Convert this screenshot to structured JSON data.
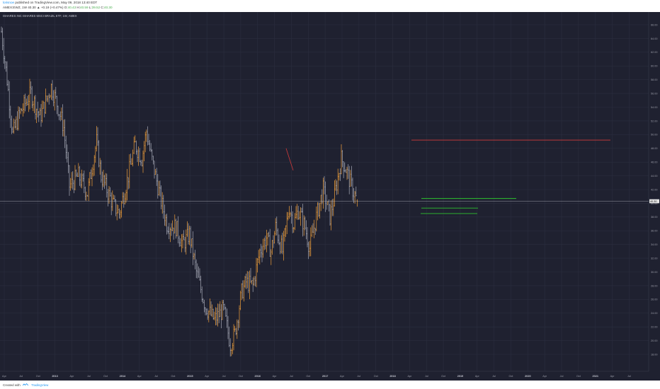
{
  "header": {
    "author": "lorisnoe",
    "published": "published on TradingView.com, May 09, 2018 13:40 EDT",
    "symbol_line": "AMEX:EWZ, 1W",
    "price_line": "40.30 ▲ +0.19 (+0.47%)",
    "o_label": "O:",
    "o_value": "40.43",
    "h_label": "H:",
    "h_value": "40.59",
    "l_label": "L:",
    "l_value": "39.52",
    "c_label": "C:",
    "c_value": "40.30"
  },
  "title": "ISHARES INC ISHARES MSCI BRAZIL ETF, 1W, AMEX",
  "footer": {
    "created_with": "Created with",
    "brand": "TradingView"
  },
  "colors": {
    "panel_bg": "#1f2130",
    "grid": "#2b2e3f",
    "bar_up": "#f2a03a",
    "bar_down": "#a7aab7",
    "axis_text": "#9a9ca8",
    "red_line": "#d23a3a",
    "green_line": "#2ec22e",
    "price_label_bg": "#e6e6e6"
  },
  "chart_data": {
    "type": "ohlc_bar",
    "interval": "1W",
    "title": "ISHARES INC ISHARES MSCI BRAZIL ETF, 1W, AMEX",
    "ylim": [
      18,
      67
    ],
    "y_ticks": [
      "66.00",
      "64.00",
      "62.00",
      "60.00",
      "58.00",
      "56.00",
      "54.00",
      "52.00",
      "50.00",
      "48.00",
      "46.00",
      "44.00",
      "42.00",
      "40.00",
      "38.00",
      "36.00",
      "34.00",
      "32.00",
      "30.00",
      "28.00",
      "26.00",
      "24.00",
      "22.00",
      "20.00",
      "18.00"
    ],
    "x_ticks": [
      "Apr",
      "Jul",
      "Oct",
      "2013",
      "Apr",
      "Jul",
      "Oct",
      "2014",
      "Apr",
      "Jul",
      "Oct",
      "2015",
      "Apr",
      "Jul",
      "Oct",
      "2016",
      "Apr",
      "Jul",
      "Oct",
      "2017",
      "Apr",
      "Jul",
      "Oct",
      "2018",
      "Apr",
      "Jul",
      "Oct",
      "2019",
      "Apr",
      "Jul",
      "Oct",
      "2020",
      "Apr",
      "Jul",
      "Oct",
      "2021",
      "Apr",
      "Jul"
    ],
    "last_price": 40.3,
    "last_price_label": "40.30",
    "series_path": [
      {
        "t": 0,
        "p": 65.0
      },
      {
        "t": 5,
        "p": 58.0
      },
      {
        "t": 10,
        "p": 50.0
      },
      {
        "t": 16,
        "p": 53.0
      },
      {
        "t": 26,
        "p": 56.0
      },
      {
        "t": 34,
        "p": 52.5
      },
      {
        "t": 44,
        "p": 57.0
      },
      {
        "t": 50,
        "p": 54.0
      },
      {
        "t": 55,
        "p": 51.0
      },
      {
        "t": 60,
        "p": 42.5
      },
      {
        "t": 68,
        "p": 44.0
      },
      {
        "t": 76,
        "p": 41.5
      },
      {
        "t": 84,
        "p": 49.0
      },
      {
        "t": 88,
        "p": 44.0
      },
      {
        "t": 98,
        "p": 40.0
      },
      {
        "t": 104,
        "p": 38.5
      },
      {
        "t": 112,
        "p": 44.0
      },
      {
        "t": 118,
        "p": 48.5
      },
      {
        "t": 124,
        "p": 46.5
      },
      {
        "t": 128,
        "p": 50.5
      },
      {
        "t": 132,
        "p": 47.0
      },
      {
        "t": 140,
        "p": 41.0
      },
      {
        "t": 146,
        "p": 37.0
      },
      {
        "t": 154,
        "p": 36.5
      },
      {
        "t": 160,
        "p": 34.0
      },
      {
        "t": 166,
        "p": 35.5
      },
      {
        "t": 172,
        "p": 30.0
      },
      {
        "t": 180,
        "p": 25.0
      },
      {
        "t": 188,
        "p": 23.0
      },
      {
        "t": 196,
        "p": 24.5
      },
      {
        "t": 202,
        "p": 19.5
      },
      {
        "t": 206,
        "p": 21.0
      },
      {
        "t": 212,
        "p": 27.0
      },
      {
        "t": 216,
        "p": 28.5
      },
      {
        "t": 222,
        "p": 28.0
      },
      {
        "t": 228,
        "p": 33.0
      },
      {
        "t": 234,
        "p": 35.0
      },
      {
        "t": 238,
        "p": 33.0
      },
      {
        "t": 242,
        "p": 36.5
      },
      {
        "t": 248,
        "p": 33.0
      },
      {
        "t": 254,
        "p": 39.5
      },
      {
        "t": 258,
        "p": 37.0
      },
      {
        "t": 262,
        "p": 39.0
      },
      {
        "t": 268,
        "p": 36.5
      },
      {
        "t": 272,
        "p": 33.5
      },
      {
        "t": 278,
        "p": 38.0
      },
      {
        "t": 284,
        "p": 42.0
      },
      {
        "t": 290,
        "p": 38.0
      },
      {
        "t": 294,
        "p": 41.0
      },
      {
        "t": 300,
        "p": 46.5
      },
      {
        "t": 304,
        "p": 45.0
      },
      {
        "t": 310,
        "p": 42.0
      },
      {
        "t": 314,
        "p": 40.3
      }
    ],
    "annotations": [
      {
        "type": "trendline",
        "color": "red",
        "from": {
          "t": 404,
          "p": 48.0
        },
        "to": {
          "t": 414,
          "p": 44.8
        }
      },
      {
        "type": "horizontal",
        "color": "red",
        "price": 49.2,
        "from_t": 581,
        "to_t": 862
      },
      {
        "type": "horizontal",
        "color": "green",
        "price": 40.7,
        "from_t": 595,
        "to_t": 729
      },
      {
        "type": "horizontal",
        "color": "green",
        "price": 39.3,
        "from_t": 595,
        "to_t": 675
      },
      {
        "type": "horizontal",
        "color": "green",
        "price": 38.5,
        "from_t": 594,
        "to_t": 674
      }
    ]
  }
}
